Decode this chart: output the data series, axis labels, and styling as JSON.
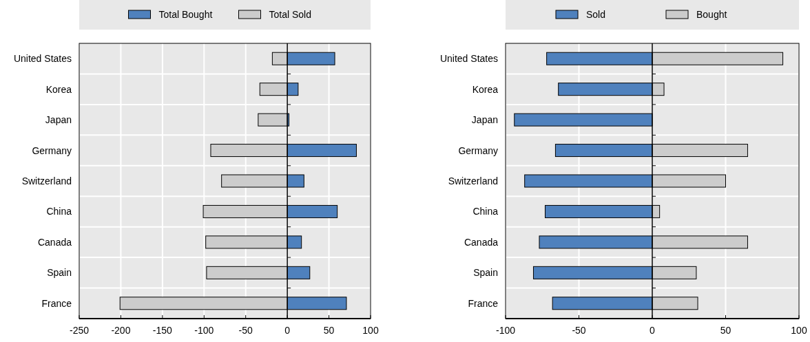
{
  "chart_data": [
    {
      "type": "bar",
      "orientation": "horizontal",
      "stacked": true,
      "categories": [
        "United States",
        "Korea",
        "Japan",
        "Germany",
        "Switzerland",
        "China",
        "Canada",
        "Spain",
        "France"
      ],
      "series": [
        {
          "name": "Total Bought",
          "color": "#4f81bd",
          "values": [
            57,
            13,
            2,
            83,
            20,
            60,
            17,
            27,
            71
          ]
        },
        {
          "name": "Total Sold",
          "color": "#cccccc",
          "values": [
            -18,
            -33,
            -35,
            -92,
            -79,
            -101,
            -98,
            -97,
            -201
          ]
        }
      ],
      "xlim": [
        -250,
        100
      ],
      "xticks": [
        -250,
        -200,
        -150,
        -100,
        -50,
        0,
        50,
        100
      ],
      "grid": "x",
      "legend": "top"
    },
    {
      "type": "bar",
      "orientation": "horizontal",
      "stacked": true,
      "categories": [
        "United States",
        "Korea",
        "Japan",
        "Germany",
        "Switzerland",
        "China",
        "Canada",
        "Spain",
        "France"
      ],
      "series": [
        {
          "name": "Sold",
          "color": "#4f81bd",
          "values": [
            -72,
            -64,
            -94,
            -66,
            -87,
            -73,
            -77,
            -81,
            -68
          ]
        },
        {
          "name": "Bought",
          "color": "#cccccc",
          "values": [
            89,
            8,
            0,
            65,
            50,
            5,
            65,
            30,
            31
          ]
        }
      ],
      "xlim": [
        -100,
        100
      ],
      "xticks": [
        -100,
        -50,
        0,
        50,
        100
      ],
      "grid": "x",
      "legend": "top"
    }
  ]
}
